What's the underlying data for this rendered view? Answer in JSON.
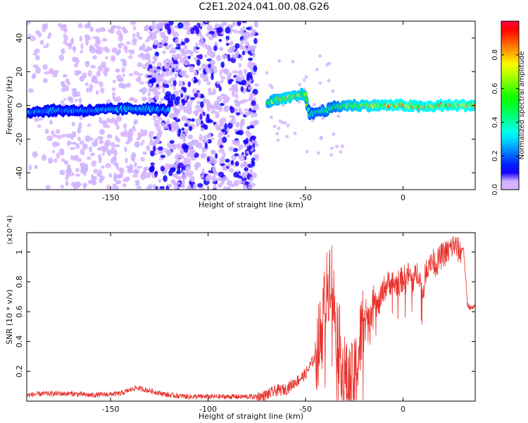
{
  "title": "C2E1.2024.041.00.08.G26",
  "chart_data": [
    {
      "type": "heatmap",
      "xlabel": "Height of straight line (km)",
      "ylabel": "Frequency (Hz)",
      "xlim": [
        -193,
        37
      ],
      "ylim": [
        -50,
        50
      ],
      "xticks": [
        -150,
        -100,
        -50,
        0
      ],
      "yticks": [
        -40,
        -20,
        0,
        20,
        40
      ],
      "colorbar": {
        "label": "Normalized spectral amplitude",
        "range": [
          0.0,
          1.0
        ],
        "ticks": [
          0.0,
          0.2,
          0.4,
          0.6,
          0.8
        ],
        "colormap": "rainbow (purple-blue-cyan-green-yellow-orange-red-magenta)"
      },
      "ridge": {
        "description": "high-amplitude band tracing the signal frequency vs height",
        "x": [
          -193,
          -180,
          -160,
          -140,
          -130,
          -120,
          -110,
          -100,
          -90,
          -80,
          -75,
          -70,
          -60,
          -50,
          -48,
          -45,
          -40,
          -35,
          -30,
          -20,
          -10,
          0,
          10,
          20,
          30,
          37
        ],
        "frequency": [
          -4,
          -3,
          -3,
          -2,
          -2,
          -3,
          null,
          null,
          null,
          null,
          null,
          2,
          4,
          7,
          -6,
          -4,
          -3,
          -1,
          0,
          0,
          0,
          0,
          -1,
          0,
          0,
          0
        ],
        "peak_amplitude": [
          0.35,
          0.35,
          0.35,
          0.4,
          0.4,
          0.3,
          null,
          null,
          null,
          null,
          null,
          0.7,
          0.85,
          0.8,
          0.5,
          0.55,
          0.6,
          0.6,
          0.75,
          0.85,
          0.9,
          0.95,
          0.9,
          0.95,
          0.95,
          0.9
        ]
      },
      "scatter_regions": [
        {
          "x_range": [
            -193,
            -175
          ],
          "density": "low"
        },
        {
          "x_range": [
            -175,
            -130
          ],
          "density": "medium"
        },
        {
          "x_range": [
            -130,
            -75
          ],
          "density": "high"
        }
      ]
    },
    {
      "type": "line",
      "xlabel": "Height of straight line (km)",
      "ylabel": "SNR (10 * v/v)",
      "y_multiplier": "(x10^4)",
      "xlim": [
        -193,
        37
      ],
      "ylim": [
        0,
        1.13
      ],
      "xticks": [
        -150,
        -100,
        -50,
        0
      ],
      "yticks": [
        0.2,
        0.4,
        0.6,
        0.8,
        1
      ],
      "color": "#e8302b",
      "series": [
        {
          "x": [
            -193,
            -185,
            -170,
            -160,
            -145,
            -137,
            -130,
            -120,
            -110,
            -100,
            -90,
            -80,
            -72,
            -65,
            -60,
            -55,
            -50,
            -45,
            -42,
            -40,
            -38,
            -37,
            -36,
            -35,
            -33,
            -31,
            -29,
            -27,
            -25,
            -23,
            -21,
            -19,
            -17,
            -15,
            -13,
            -10,
            -7,
            -4,
            0,
            3,
            5,
            8,
            10,
            12,
            14,
            17,
            20,
            23,
            26,
            29,
            31,
            33,
            35,
            37
          ],
          "y": [
            0.04,
            0.05,
            0.05,
            0.04,
            0.05,
            0.09,
            0.07,
            0.04,
            0.03,
            0.03,
            0.03,
            0.03,
            0.03,
            0.07,
            0.08,
            0.13,
            0.18,
            0.3,
            0.45,
            0.65,
            0.82,
            0.9,
            0.72,
            0.6,
            0.4,
            0.25,
            0.12,
            0.1,
            0.14,
            0.28,
            0.5,
            0.6,
            0.55,
            0.72,
            0.62,
            0.75,
            0.8,
            0.78,
            0.82,
            0.85,
            0.8,
            0.88,
            0.7,
            0.9,
            0.95,
            0.92,
            0.98,
            1.0,
            1.05,
            1.0,
            1.03,
            0.65,
            0.62,
            0.63
          ]
        }
      ]
    }
  ]
}
